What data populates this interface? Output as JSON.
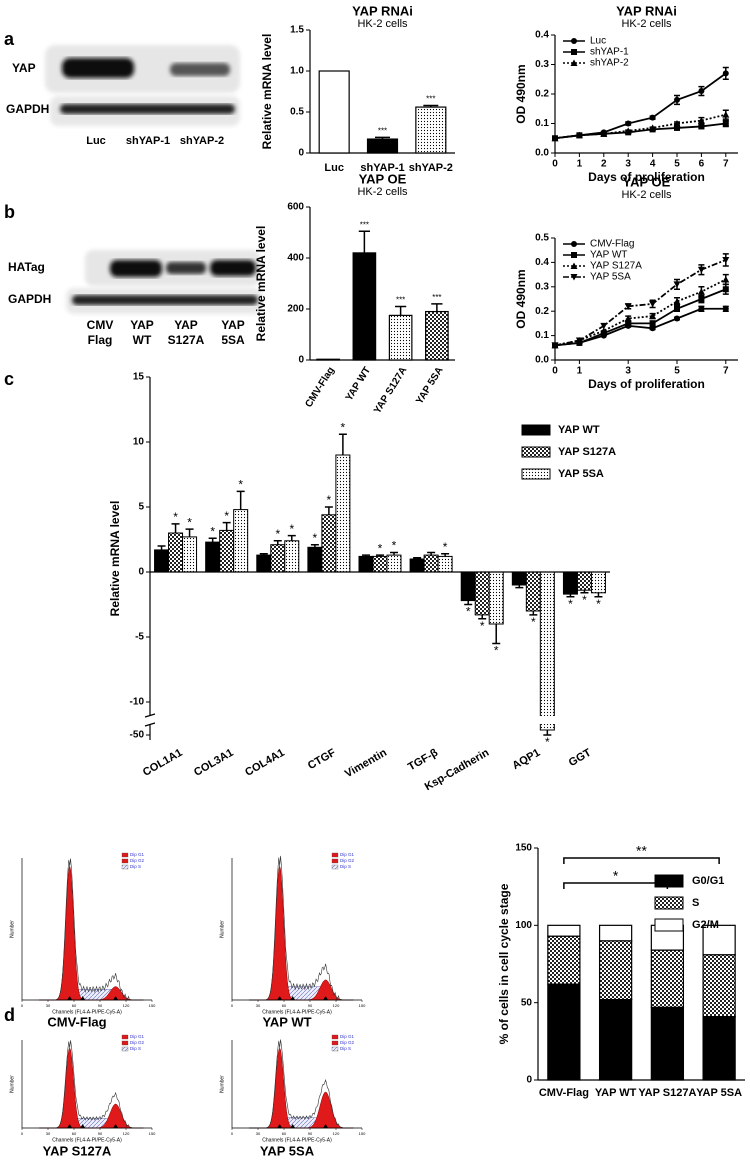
{
  "panel_labels": [
    "a",
    "b",
    "c",
    "d"
  ],
  "blots": [
    {
      "rows": [
        "YAP",
        "GAPDH"
      ],
      "lanes": [
        "Luc",
        "shYAP-1",
        "shYAP-2"
      ]
    },
    {
      "rows": [
        "HATag",
        "GAPDH"
      ],
      "lanes": [
        [
          "CMV",
          "Flag"
        ],
        [
          "YAP",
          "WT"
        ],
        [
          "YAP",
          "S127A"
        ],
        [
          "YAP",
          "5SA"
        ]
      ]
    }
  ],
  "flow": {
    "x_label": "Channels (FL4-A-PI/PE-Cy5-A)",
    "y_label": "Number",
    "legend": [
      "Dip G1",
      "Dip G2",
      "Dip S"
    ],
    "xticks": [
      0,
      30,
      60,
      90,
      120,
      150
    ],
    "samples": [
      "CMV-Flag",
      "YAP WT",
      "YAP S127A",
      "YAP 5SA"
    ]
  },
  "chart_data": [
    {
      "type": "bar",
      "title": "YAP RNAi",
      "subtitle": "HK-2 cells",
      "y_label": "Relative mRNA level",
      "categories": [
        "Luc",
        "shYAP-1",
        "shYAP-2"
      ],
      "values": [
        1.0,
        0.17,
        0.56
      ],
      "errors": [
        0,
        0.02,
        0.02
      ],
      "annotations": [
        null,
        "***",
        "***"
      ],
      "colors": [
        "#ffffff",
        "#000000",
        "#ffffff"
      ],
      "patterns": [
        "solid",
        "solid",
        "dots"
      ],
      "ylim": [
        0,
        1.5
      ],
      "yticks": [
        0,
        0.5,
        {
          "value": 1,
          "label": "1.0"
        },
        1.5
      ]
    },
    {
      "type": "line",
      "title": "YAP RNAi",
      "subtitle": "HK-2 cells",
      "y_label": "OD 490nm",
      "x_label": "Days of proliferation",
      "x": [
        0,
        1,
        2,
        3,
        4,
        5,
        6,
        7
      ],
      "xlim": [
        0,
        7.5
      ],
      "xticks": [
        0,
        1,
        2,
        3,
        4,
        5,
        6,
        7
      ],
      "ylim": [
        0,
        0.4
      ],
      "yticks": [
        {
          "value": 0,
          "label": "0.0"
        },
        0.1,
        0.2,
        0.3,
        0.4
      ],
      "series": [
        {
          "name": "Luc",
          "color": "#000000",
          "marker": "circle",
          "dash": "solid",
          "values": [
            0.05,
            0.06,
            0.07,
            0.1,
            0.12,
            0.18,
            0.21,
            0.27
          ],
          "errors": [
            0,
            0,
            0,
            0.005,
            0.005,
            0.015,
            0.015,
            0.02
          ]
        },
        {
          "name": "shYAP-1",
          "color": "#000000",
          "marker": "square",
          "dash": "solid",
          "values": [
            0.05,
            0.06,
            0.065,
            0.07,
            0.08,
            0.085,
            0.09,
            0.1
          ],
          "errors": [
            0,
            0,
            0,
            0,
            0,
            0.005,
            0.005,
            0.01
          ]
        },
        {
          "name": "shYAP-2",
          "color": "#000000",
          "marker": "triangle",
          "dash": "dotted",
          "values": [
            0.05,
            0.06,
            0.065,
            0.075,
            0.085,
            0.1,
            0.11,
            0.13
          ],
          "errors": [
            0,
            0,
            0,
            0,
            0,
            0.005,
            0.01,
            0.015
          ]
        }
      ]
    },
    {
      "type": "bar",
      "title": "YAP OE",
      "subtitle": "HK-2 cells",
      "y_label": "Relative mRNA level",
      "categories": [
        "CMV-Flag",
        "YAP WT",
        "YAP S127A",
        "YAP 5SA"
      ],
      "values": [
        3,
        420,
        175,
        190
      ],
      "errors": [
        0,
        85,
        35,
        30
      ],
      "annotations": [
        null,
        "***",
        "***",
        "***"
      ],
      "colors": [
        "#ffffff",
        "#000000",
        "#ffffff",
        "#ffffff"
      ],
      "patterns": [
        "solid",
        "solid",
        "dots",
        "checks"
      ],
      "ylim": [
        0,
        600
      ],
      "yticks": [
        0,
        200,
        400,
        600
      ]
    },
    {
      "type": "line",
      "title": "YAP OE",
      "subtitle": "HK-2 cells",
      "y_label": "OD 490nm",
      "x_label": "Days of proliferation",
      "x": [
        0,
        1,
        2,
        3,
        4,
        5,
        6,
        7
      ],
      "xlim": [
        0,
        7.5
      ],
      "xticks": [
        0,
        1,
        3,
        5,
        7
      ],
      "ylim": [
        0,
        0.5
      ],
      "yticks": [
        {
          "value": 0,
          "label": "0.0"
        },
        0.1,
        0.2,
        0.3,
        0.4,
        0.5
      ],
      "series": [
        {
          "name": "CMV-Flag",
          "color": "#000000",
          "marker": "circle",
          "dash": "solid",
          "values": [
            0.06,
            0.07,
            0.1,
            0.14,
            0.13,
            0.17,
            0.21,
            0.21
          ],
          "errors": [
            0,
            0,
            0,
            0.005,
            0.005,
            0.005,
            0.01,
            0.01
          ]
        },
        {
          "name": "YAP WT",
          "color": "#000000",
          "marker": "square",
          "dash": "solid",
          "values": [
            0.06,
            0.07,
            0.11,
            0.15,
            0.15,
            0.21,
            0.25,
            0.29
          ],
          "errors": [
            0,
            0,
            0,
            0.005,
            0.01,
            0.01,
            0.015,
            0.02
          ]
        },
        {
          "name": "YAP S127A",
          "color": "#000000",
          "marker": "triangle",
          "dash": "dotted",
          "values": [
            0.06,
            0.08,
            0.12,
            0.17,
            0.18,
            0.24,
            0.28,
            0.33
          ],
          "errors": [
            0,
            0,
            0,
            0.01,
            0.01,
            0.015,
            0.02,
            0.02
          ]
        },
        {
          "name": "YAP 5SA",
          "color": "#000000",
          "marker": "triangle-down",
          "dash": "dashdot",
          "values": [
            0.06,
            0.08,
            0.14,
            0.22,
            0.23,
            0.31,
            0.37,
            0.41
          ],
          "errors": [
            0,
            0,
            0,
            0.01,
            0.015,
            0.02,
            0.02,
            0.025
          ]
        }
      ]
    },
    {
      "type": "grouped_bar",
      "y_label": "Relative mRNA level",
      "categories": [
        "COL1A1",
        "COL3A1",
        "COL4A1",
        "CTGF",
        "Vimentin",
        "TGF-β",
        "Ksp-Cadherin",
        "AQP1",
        "GGT"
      ],
      "ylim": [
        -51,
        15
      ],
      "yticks": [
        -50,
        -10,
        -5,
        0,
        5,
        10,
        15
      ],
      "y_break": [
        -11,
        -48
      ],
      "series": [
        {
          "name": "YAP WT",
          "color": "#000000",
          "pattern": "solid",
          "values": [
            1.7,
            2.3,
            1.3,
            1.9,
            1.2,
            1.0,
            -2.2,
            -1.0,
            -1.7
          ],
          "errors": [
            0.3,
            0.3,
            0.1,
            0.2,
            0.1,
            0.1,
            0.3,
            0.2,
            0.2
          ],
          "significance": [
            null,
            "*",
            null,
            "*",
            null,
            null,
            "*",
            null,
            "*"
          ]
        },
        {
          "name": "YAP S127A",
          "color": "#444444",
          "pattern": "checks",
          "values": [
            3.0,
            3.2,
            2.1,
            4.4,
            1.2,
            1.3,
            -3.3,
            -3.0,
            -1.4
          ],
          "errors": [
            0.7,
            0.6,
            0.3,
            0.6,
            0.1,
            0.2,
            0.3,
            0.3,
            0.2
          ],
          "significance": [
            "*",
            "*",
            "*",
            "*",
            "*",
            null,
            "*",
            "*",
            "*"
          ]
        },
        {
          "name": "YAP 5SA",
          "color": "#ffffff",
          "pattern": "dots",
          "values": [
            2.7,
            4.8,
            2.4,
            9.0,
            1.3,
            1.2,
            -4.0,
            -49,
            -1.6
          ],
          "errors": [
            0.6,
            1.4,
            0.4,
            1.6,
            0.2,
            0.2,
            1.5,
            1,
            0.3
          ],
          "significance": [
            "*",
            "*",
            "*",
            "*",
            "*",
            "*",
            "*",
            "*",
            "*"
          ]
        }
      ]
    },
    {
      "type": "stacked_bar",
      "y_label": "% of cells in cell cycle stage",
      "categories": [
        "CMV-Flag",
        "YAP WT",
        "YAP S127A",
        "YAP 5SA"
      ],
      "ylim": [
        0,
        150
      ],
      "yticks": [
        0,
        50,
        100,
        150
      ],
      "series": [
        {
          "name": "G0/G1",
          "color": "#000000",
          "pattern": "solid",
          "values": [
            62,
            52,
            47,
            41
          ]
        },
        {
          "name": "S",
          "color": "#555555",
          "pattern": "checks",
          "values": [
            31,
            38,
            37,
            40
          ]
        },
        {
          "name": "G2/M",
          "color": "#ffffff",
          "pattern": "solid",
          "values": [
            7,
            10,
            16,
            19
          ]
        }
      ],
      "brackets": [
        {
          "from": 0,
          "to": 3,
          "label": "**"
        },
        {
          "from": 0,
          "to": 2,
          "label": "*"
        }
      ]
    }
  ]
}
